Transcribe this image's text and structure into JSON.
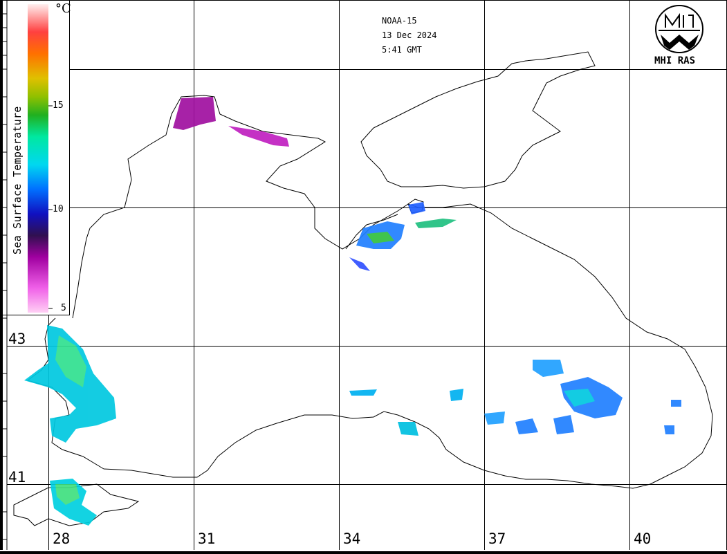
{
  "caption": {
    "satellite": "NOAA-15",
    "date": "13 Dec 2024",
    "time": "5:41 GMT"
  },
  "legend": {
    "title": "Sea Surface Temperature",
    "unit": "°C",
    "ticks": [
      "15",
      "10",
      "5"
    ],
    "colors": [
      "#ffd8e0",
      "#ff9090",
      "#ff4030",
      "#ff7a00",
      "#e8b000",
      "#c8d800",
      "#30c020",
      "#00e080",
      "#00e8e0",
      "#00a8ff",
      "#0040e0",
      "#101060",
      "#800080",
      "#e000e0",
      "#ffc0f8"
    ]
  },
  "grid": {
    "latitudes": [
      "43",
      "41"
    ],
    "longitudes": [
      "28",
      "31",
      "34",
      "37",
      "40"
    ]
  },
  "logo": {
    "text": "MHI RAS"
  }
}
